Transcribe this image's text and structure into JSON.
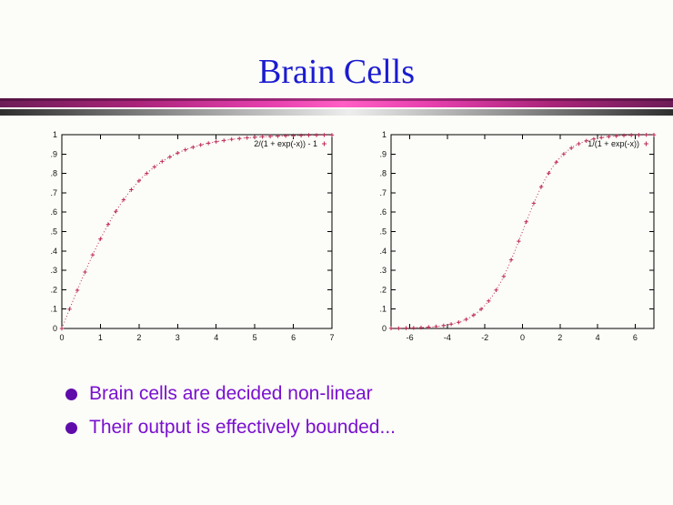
{
  "slide": {
    "title": "Brain Cells",
    "bullets": [
      "Brain cells are decided non-linear",
      "Their output is effectively bounded..."
    ]
  },
  "colors": {
    "background": "#fcfcf8",
    "title_blue": "#1b1bd1",
    "bullet_purple": "#7a10d0",
    "bullet_dot_purple": "#5f0cab",
    "divider_pink_bright": "#ff5ec4",
    "divider_pink_dark": "#6d1d57",
    "divider_gray_dark": "#2e2e2e",
    "divider_gray_light": "#ededed",
    "curve_crimson": "#bd2a56"
  },
  "chart_data": [
    {
      "type": "scatter",
      "title": "",
      "legend": "2/(1 + exp(-x)) - 1",
      "legend_position": "top-right-inside",
      "color": "#bd2a56",
      "grid": false,
      "xlim": [
        0,
        7
      ],
      "ylim": [
        0,
        1
      ],
      "x_ticks": [
        0,
        1,
        2,
        3,
        4,
        5,
        6,
        7
      ],
      "x_tick_labels": [
        "0",
        "1",
        "2",
        "3",
        "4",
        "5",
        "6",
        "7"
      ],
      "y_ticks": [
        0,
        0.1,
        0.2,
        0.3,
        0.4,
        0.5,
        0.6,
        0.7,
        0.8,
        0.9,
        1
      ],
      "y_tick_labels": [
        "0",
        ".1",
        ".2",
        ".3",
        ".4",
        ".5",
        ".6",
        ".7",
        ".8",
        ".9",
        "1"
      ],
      "x_start": 0,
      "x_step": 0.1,
      "y": [
        0.0,
        0.05,
        0.1,
        0.149,
        0.197,
        0.245,
        0.291,
        0.336,
        0.38,
        0.422,
        0.462,
        0.5,
        0.537,
        0.572,
        0.604,
        0.635,
        0.664,
        0.691,
        0.716,
        0.74,
        0.762,
        0.782,
        0.8,
        0.818,
        0.834,
        0.848,
        0.862,
        0.874,
        0.885,
        0.896,
        0.905,
        0.914,
        0.922,
        0.929,
        0.935,
        0.941,
        0.947,
        0.952,
        0.956,
        0.96,
        0.964,
        0.967,
        0.97,
        0.973,
        0.976,
        0.978,
        0.98,
        0.982,
        0.984,
        0.985,
        0.987,
        0.988,
        0.989,
        0.99,
        0.991,
        0.992,
        0.993,
        0.993,
        0.994,
        0.994,
        0.995,
        0.996,
        0.996,
        0.996,
        0.997,
        0.997,
        0.997,
        0.998,
        0.998,
        0.998,
        0.998
      ]
    },
    {
      "type": "scatter",
      "title": "",
      "legend": "1/(1 + exp(-x))",
      "legend_position": "top-right-inside",
      "color": "#bd2a56",
      "grid": false,
      "xlim": [
        -7,
        7
      ],
      "ylim": [
        0,
        1
      ],
      "x_ticks": [
        -6,
        -4,
        -2,
        0,
        2,
        4,
        6
      ],
      "x_tick_labels": [
        "-6",
        "-4",
        "-2",
        "0",
        "2",
        "4",
        "6"
      ],
      "y_ticks": [
        0,
        0.1,
        0.2,
        0.3,
        0.4,
        0.5,
        0.6,
        0.7,
        0.8,
        0.9,
        1
      ],
      "y_tick_labels": [
        "0",
        ".1",
        ".2",
        ".3",
        ".4",
        ".5",
        ".6",
        ".7",
        ".8",
        ".9",
        "1"
      ],
      "x_start": -7,
      "x_step": 0.2,
      "y": [
        0.001,
        0.001,
        0.001,
        0.002,
        0.002,
        0.002,
        0.003,
        0.004,
        0.004,
        0.005,
        0.007,
        0.008,
        0.01,
        0.012,
        0.015,
        0.018,
        0.022,
        0.027,
        0.032,
        0.039,
        0.047,
        0.057,
        0.069,
        0.083,
        0.1,
        0.119,
        0.142,
        0.168,
        0.198,
        0.231,
        0.269,
        0.31,
        0.354,
        0.401,
        0.45,
        0.5,
        0.55,
        0.599,
        0.646,
        0.69,
        0.731,
        0.769,
        0.802,
        0.832,
        0.858,
        0.881,
        0.9,
        0.917,
        0.931,
        0.943,
        0.953,
        0.961,
        0.968,
        0.973,
        0.978,
        0.982,
        0.985,
        0.988,
        0.99,
        0.992,
        0.993,
        0.995,
        0.996,
        0.996,
        0.997,
        0.998,
        0.998,
        0.998,
        0.999,
        0.999,
        0.999
      ]
    }
  ]
}
